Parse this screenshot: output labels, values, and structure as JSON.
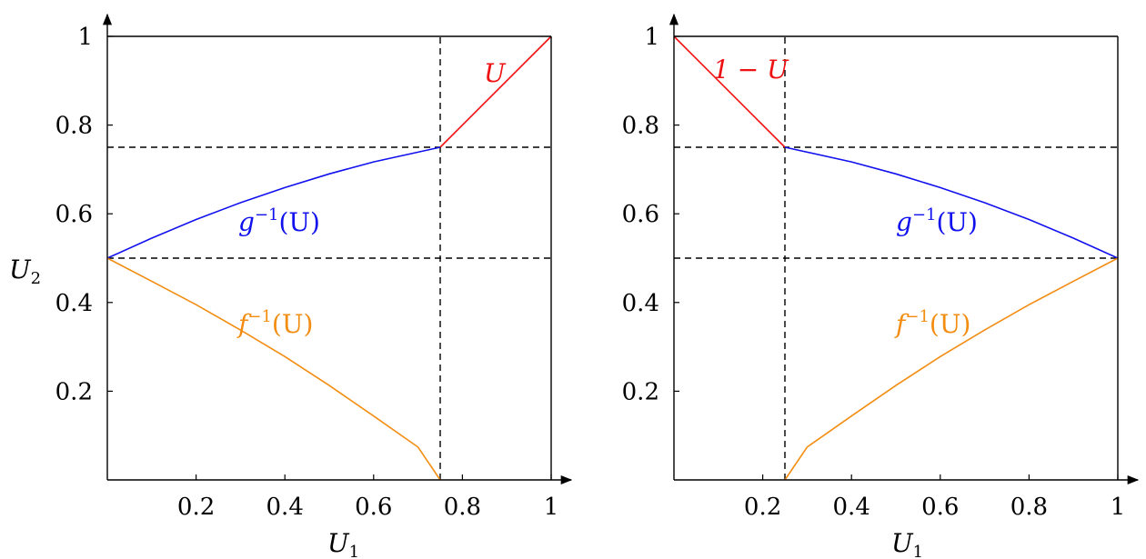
{
  "colors": {
    "axis": "#000000",
    "red": "#ee1111",
    "blue": "#1111ee",
    "orange": "#f38d12",
    "dash": "#000000"
  },
  "chart_data": [
    {
      "type": "line",
      "panel": "left",
      "xlabel": "U",
      "xlabel_sub": "1",
      "ylabel": "U",
      "ylabel_sub": "2",
      "xlim": [
        0,
        1
      ],
      "ylim": [
        0,
        1
      ],
      "x_ticks": [
        "0.2",
        "0.4",
        "0.6",
        "0.8",
        "1"
      ],
      "y_ticks": [
        "0.2",
        "0.4",
        "0.6",
        "0.8",
        "1"
      ],
      "dashed_h": [
        0.75,
        0.5
      ],
      "dashed_v": [
        0.75
      ],
      "series": [
        {
          "name": "U",
          "label": "U",
          "color_key": "red",
          "x": [
            0.75,
            1.0
          ],
          "y": [
            0.75,
            1.0
          ]
        },
        {
          "name": "g^{-1}(U)",
          "label_main": "g",
          "label_sup": "−1",
          "label_tail": "(U)",
          "color_key": "blue",
          "x": [
            0,
            0.1,
            0.2,
            0.3,
            0.4,
            0.5,
            0.6,
            0.75
          ],
          "y": [
            0.5,
            0.545,
            0.587,
            0.625,
            0.659,
            0.69,
            0.717,
            0.75
          ]
        },
        {
          "name": "f^{-1}(U)",
          "label_main": "f",
          "label_sup": "−1",
          "label_tail": "(U)",
          "color_key": "orange",
          "x": [
            0,
            0.1,
            0.2,
            0.3,
            0.4,
            0.5,
            0.6,
            0.7,
            0.75
          ],
          "y": [
            0.5,
            0.448,
            0.395,
            0.338,
            0.278,
            0.213,
            0.144,
            0.074,
            0.0
          ]
        }
      ]
    },
    {
      "type": "line",
      "panel": "right",
      "xlabel": "U",
      "xlabel_sub": "1",
      "xlim": [
        0,
        1
      ],
      "ylim": [
        0,
        1
      ],
      "x_ticks": [
        "0.2",
        "0.4",
        "0.6",
        "0.8",
        "1"
      ],
      "y_ticks": [
        "0.2",
        "0.4",
        "0.6",
        "0.8",
        "1"
      ],
      "dashed_h": [
        0.75,
        0.5
      ],
      "dashed_v": [
        0.25
      ],
      "series": [
        {
          "name": "1 - U",
          "label": "1 − U",
          "color_key": "red",
          "x": [
            0,
            0.25
          ],
          "y": [
            1.0,
            0.75
          ]
        },
        {
          "name": "g^{-1}(U)",
          "label_main": "g",
          "label_sup": "−1",
          "label_tail": "(U)",
          "color_key": "blue",
          "x": [
            0.25,
            0.4,
            0.5,
            0.6,
            0.7,
            0.8,
            0.9,
            1.0
          ],
          "y": [
            0.75,
            0.717,
            0.69,
            0.659,
            0.625,
            0.587,
            0.545,
            0.5
          ]
        },
        {
          "name": "f^{-1}(U)",
          "label_main": "f",
          "label_sup": "−1",
          "label_tail": "(U)",
          "color_key": "orange",
          "x": [
            0.25,
            0.3,
            0.4,
            0.5,
            0.6,
            0.7,
            0.8,
            0.9,
            1.0
          ],
          "y": [
            0.0,
            0.074,
            0.144,
            0.213,
            0.278,
            0.338,
            0.395,
            0.448,
            0.5
          ]
        }
      ]
    }
  ]
}
